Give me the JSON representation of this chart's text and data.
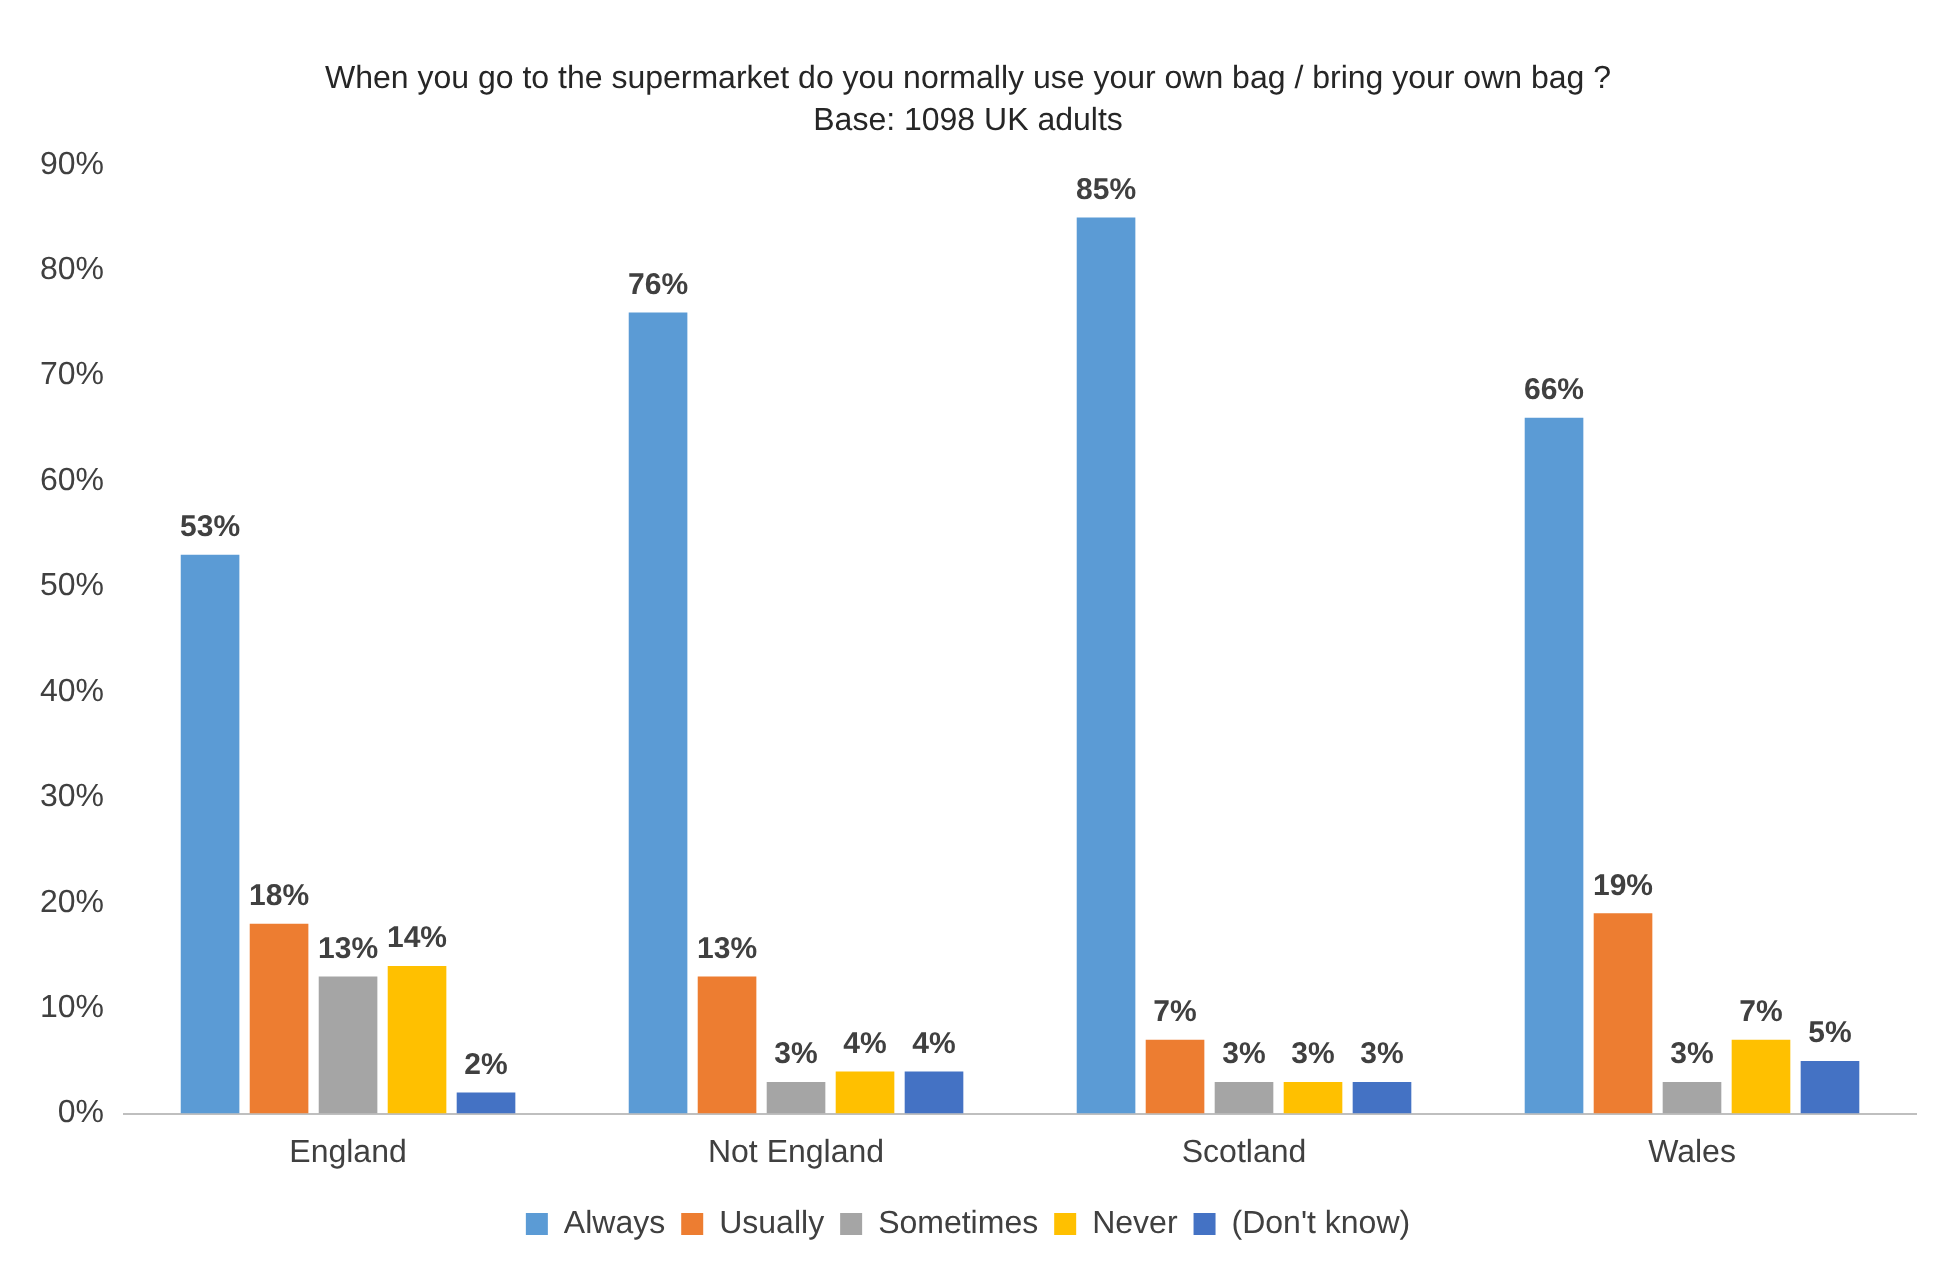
{
  "chart_data": {
    "type": "bar",
    "title": "When you go to the supermarket do you normally use your own bag / bring your own bag ?",
    "subtitle": "Base: 1098 UK adults",
    "categories": [
      "England",
      "Not England",
      "Scotland",
      "Wales"
    ],
    "series": [
      {
        "name": "Always",
        "color": "#5b9bd5",
        "values": [
          53,
          76,
          85,
          66
        ],
        "value_labels": [
          "53%",
          "76%",
          "85%",
          "66%"
        ]
      },
      {
        "name": "Usually",
        "color": "#ed7d31",
        "values": [
          18,
          13,
          7,
          19
        ],
        "value_labels": [
          "18%",
          "13%",
          "7%",
          "19%"
        ]
      },
      {
        "name": "Sometimes",
        "color": "#a5a5a5",
        "values": [
          13,
          3,
          3,
          3
        ],
        "value_labels": [
          "13%",
          "3%",
          "3%",
          "3%"
        ]
      },
      {
        "name": "Never",
        "color": "#ffc000",
        "values": [
          14,
          4,
          3,
          7
        ],
        "value_labels": [
          "14%",
          "4%",
          "3%",
          "7%"
        ]
      },
      {
        "name": "(Don't know)",
        "color": "#4472c4",
        "values": [
          2,
          4,
          3,
          5
        ],
        "value_labels": [
          "2%",
          "4%",
          "3%",
          "5%"
        ]
      }
    ],
    "ylim": [
      0,
      90
    ],
    "yticks": [
      {
        "value": 0,
        "label": "0%"
      },
      {
        "value": 10,
        "label": "10%"
      },
      {
        "value": 20,
        "label": "20%"
      },
      {
        "value": 30,
        "label": "30%"
      },
      {
        "value": 40,
        "label": "40%"
      },
      {
        "value": 50,
        "label": "50%"
      },
      {
        "value": 60,
        "label": "60%"
      },
      {
        "value": 70,
        "label": "70%"
      },
      {
        "value": 80,
        "label": "80%"
      },
      {
        "value": 90,
        "label": "90%"
      }
    ],
    "grid": false,
    "legend": "bottom"
  }
}
